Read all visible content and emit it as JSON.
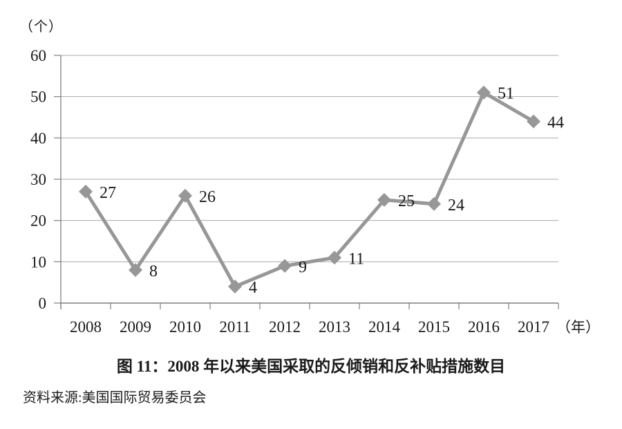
{
  "chart_data": {
    "type": "line",
    "title": "图 11：2008 年以来美国采取的反倾销和反补贴措施数目",
    "source": "资料来源:美国国际贸易委员会",
    "xlabel": "（年）",
    "ylabel": "（个）",
    "categories": [
      "2008",
      "2009",
      "2010",
      "2011",
      "2012",
      "2013",
      "2014",
      "2015",
      "2016",
      "2017"
    ],
    "values": [
      27,
      8,
      26,
      4,
      9,
      11,
      25,
      24,
      51,
      44
    ],
    "ylim": [
      0,
      60
    ],
    "yticks": [
      0,
      10,
      20,
      30,
      40,
      50,
      60
    ],
    "grid": "horizontal",
    "legend": "none",
    "marker": "diamond",
    "data_labels_shown": true,
    "colors": {
      "line": "#979797",
      "marker": "#979797",
      "grid": "#a9a9a9",
      "axis": "#7f7f7f",
      "text": "#1a1a1a"
    }
  }
}
